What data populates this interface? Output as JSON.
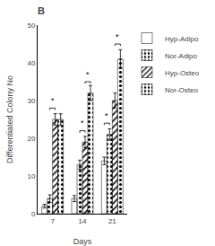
{
  "chart_data": {
    "type": "bar",
    "title": "B",
    "xlabel": "Days",
    "ylabel": "Differentiated Colony No",
    "categories": [
      "7",
      "14",
      "21"
    ],
    "series": [
      {
        "name": "Hyp-Adipo",
        "color": "white",
        "values": [
          2,
          4,
          14
        ],
        "errors": [
          0.5,
          0.8,
          1.0
        ]
      },
      {
        "name": "Nor-Adipo",
        "color": "lightgray",
        "values": [
          4,
          13,
          21
        ],
        "errors": [
          1.0,
          1.2,
          1.5
        ]
      },
      {
        "name": "Hyp-Osteo",
        "color": "gray",
        "values": [
          25,
          19,
          30
        ],
        "errors": [
          1.5,
          1.5,
          2.0
        ]
      },
      {
        "name": "Nor-Osteo",
        "color": "darkgray",
        "values": [
          25,
          32,
          41
        ],
        "errors": [
          1.5,
          2.0,
          2.5
        ]
      }
    ],
    "significance_brackets": [
      {
        "category": "7",
        "series": [
          "Nor-Adipo",
          "Hyp-Osteo"
        ],
        "y": 28,
        "label": "*"
      },
      {
        "category": "14",
        "series": [
          "Nor-Adipo",
          "Hyp-Osteo"
        ],
        "y": 22,
        "label": "*"
      },
      {
        "category": "14",
        "series": [
          "Hyp-Osteo",
          "Nor-Osteo"
        ],
        "y": 35,
        "label": "*"
      },
      {
        "category": "21",
        "series": [
          "Hyp-Adipo",
          "Nor-Adipo"
        ],
        "y": 24,
        "label": "*"
      },
      {
        "category": "21",
        "series": [
          "Hyp-Osteo",
          "Nor-Osteo"
        ],
        "y": 45,
        "label": "*"
      }
    ],
    "ylim": [
      0,
      50
    ],
    "yticks": [
      0,
      10,
      20,
      30,
      40,
      50
    ],
    "grid": false,
    "legend": "right"
  }
}
